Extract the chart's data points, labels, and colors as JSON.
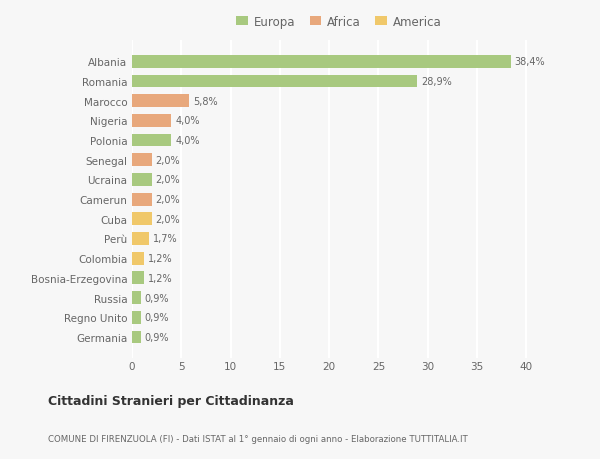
{
  "countries": [
    "Albania",
    "Romania",
    "Marocco",
    "Nigeria",
    "Polonia",
    "Senegal",
    "Ucraina",
    "Camerun",
    "Cuba",
    "Perù",
    "Colombia",
    "Bosnia-Erzegovina",
    "Russia",
    "Regno Unito",
    "Germania"
  ],
  "values": [
    38.4,
    28.9,
    5.8,
    4.0,
    4.0,
    2.0,
    2.0,
    2.0,
    2.0,
    1.7,
    1.2,
    1.2,
    0.9,
    0.9,
    0.9
  ],
  "labels": [
    "38,4%",
    "28,9%",
    "5,8%",
    "4,0%",
    "4,0%",
    "2,0%",
    "2,0%",
    "2,0%",
    "2,0%",
    "1,7%",
    "1,2%",
    "1,2%",
    "0,9%",
    "0,9%",
    "0,9%"
  ],
  "categories": [
    "Europa",
    "Europa",
    "Africa",
    "Africa",
    "Europa",
    "Africa",
    "Europa",
    "Africa",
    "America",
    "America",
    "America",
    "Europa",
    "Europa",
    "Europa",
    "Europa"
  ],
  "colors": {
    "Europa": "#a8c97f",
    "Africa": "#e8a87c",
    "America": "#f0c86a"
  },
  "title1": "Cittadini Stranieri per Cittadinanza",
  "title2": "COMUNE DI FIRENZUOLA (FI) - Dati ISTAT al 1° gennaio di ogni anno - Elaborazione TUTTITALIA.IT",
  "xlim": [
    0,
    42
  ],
  "xticks": [
    0,
    5,
    10,
    15,
    20,
    25,
    30,
    35,
    40
  ],
  "bg_color": "#f7f7f7",
  "grid_color": "#ffffff",
  "bar_height": 0.65
}
